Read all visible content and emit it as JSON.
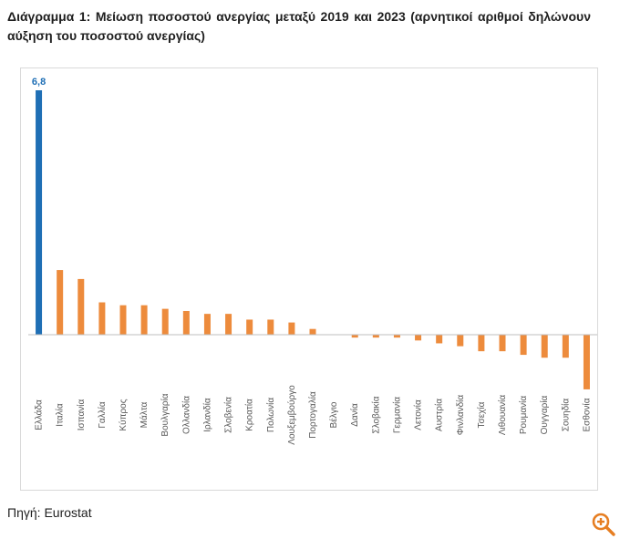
{
  "title": "Διάγραμμα 1: Μείωση ποσοστού ανεργίας μεταξύ 2019 και 2023 (αρνητικοί αριθμοί δηλώνουν αύξηση του ποσοστού ανεργίας)",
  "source": "Πηγή: Eurostat",
  "icons": {
    "zoom": "zoom-in-icon"
  },
  "colors": {
    "highlight": "#1F6FB5",
    "bars": "#ED8B3C",
    "axis": "#BFBFBF",
    "label": "#595959",
    "zoom": "#E67E22"
  },
  "chart_data": {
    "type": "bar",
    "title": "",
    "xlabel": "",
    "ylabel": "",
    "ylim": [
      -1.6,
      6.8
    ],
    "grid": false,
    "legend": "none",
    "highlight_index": 0,
    "data_labels": [
      {
        "index": 0,
        "text": "6,8"
      }
    ],
    "categories": [
      "Ελλάδα",
      "Ιταλία",
      "Ισπανία",
      "Γαλλία",
      "Κύπρος",
      "Μάλτα",
      "Βουλγαρία",
      "Ολλανδία",
      "Ιρλανδία",
      "Σλοβενία",
      "Κροατία",
      "Πολωνία",
      "Λουξεμβούργο",
      "Πορτογαλία",
      "Βέλγιο",
      "Δανία",
      "Σλοβακία",
      "Γερμανία",
      "Λετονία",
      "Αυστρία",
      "Φινλανδία",
      "Τσεχία",
      "Λιθουανία",
      "Ρουμανία",
      "Ουγγαρία",
      "Σουηδία",
      "Εσθονία"
    ],
    "values": [
      6.8,
      1.8,
      1.55,
      0.9,
      0.82,
      0.82,
      0.72,
      0.66,
      0.58,
      0.58,
      0.42,
      0.42,
      0.34,
      0.16,
      0.0,
      -0.08,
      -0.08,
      -0.08,
      -0.16,
      -0.24,
      -0.32,
      -0.46,
      -0.46,
      -0.56,
      -0.64,
      -0.64,
      -1.52
    ]
  }
}
